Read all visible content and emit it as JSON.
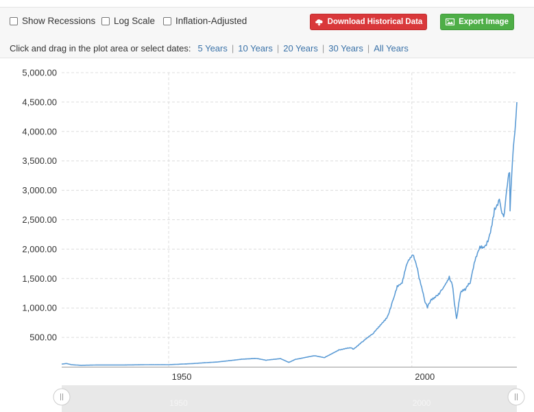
{
  "options": {
    "recessions_label": "Show Recessions",
    "log_label": "Log Scale",
    "inflation_label": "Inflation-Adjusted"
  },
  "buttons": {
    "download_label": "Download Historical Data",
    "export_label": "Export Image"
  },
  "date_select": {
    "prompt": "Click and drag in the plot area or select dates:",
    "ranges": [
      "5 Years",
      "10 Years",
      "20 Years",
      "30 Years",
      "All Years"
    ]
  },
  "colors": {
    "line": "#5b9bd5",
    "download_button": "#d9383a",
    "export_button": "#4eae47",
    "link": "#3a72a8"
  },
  "chart_data": {
    "type": "line",
    "title": "",
    "xlabel": "",
    "ylabel": "",
    "x_ticks": [
      1950,
      2000
    ],
    "y_ticks": [
      "500.00",
      "1,000.00",
      "1,500.00",
      "2,000.00",
      "2,500.00",
      "3,000.00",
      "3,500.00",
      "4,000.00",
      "4,500.00",
      "5,000.00"
    ],
    "xlim": [
      1928,
      2021.6
    ],
    "ylim": [
      0,
      5000
    ],
    "grid": true,
    "navigator_labels": [
      "1950",
      "2000"
    ],
    "series": [
      {
        "x": [
          1928,
          1929,
          1930,
          1932,
          1935,
          1940,
          1945,
          1950,
          1955,
          1960,
          1965,
          1968,
          1970,
          1972,
          1973,
          1974.7,
          1976,
          1980,
          1982,
          1985,
          1987.6,
          1987.9,
          1990,
          1992,
          1995,
          1996,
          1997,
          1998,
          1999,
          2000.2,
          2000.7,
          2001.5,
          2002.7,
          2003.2,
          2004,
          2005,
          2006,
          2007.7,
          2008.3,
          2008.9,
          2009.2,
          2010,
          2011,
          2012,
          2013,
          2014,
          2015,
          2016,
          2017,
          2018,
          2018.9,
          2019.5,
          2020.1,
          2020.2,
          2020.5,
          2020.9,
          2021.2,
          2021.6
        ],
        "y": [
          45,
          55,
          35,
          25,
          30,
          30,
          35,
          35,
          55,
          80,
          130,
          140,
          110,
          130,
          140,
          75,
          125,
          185,
          155,
          290,
          320,
          300,
          430,
          560,
          860,
          1110,
          1380,
          1420,
          1750,
          1900,
          1800,
          1500,
          1100,
          1000,
          1150,
          1210,
          1300,
          1540,
          1400,
          1000,
          820,
          1250,
          1300,
          1420,
          1800,
          2050,
          2050,
          2250,
          2700,
          2850,
          2550,
          3000,
          3300,
          2650,
          3200,
          3750,
          4000,
          4500
        ]
      }
    ]
  }
}
